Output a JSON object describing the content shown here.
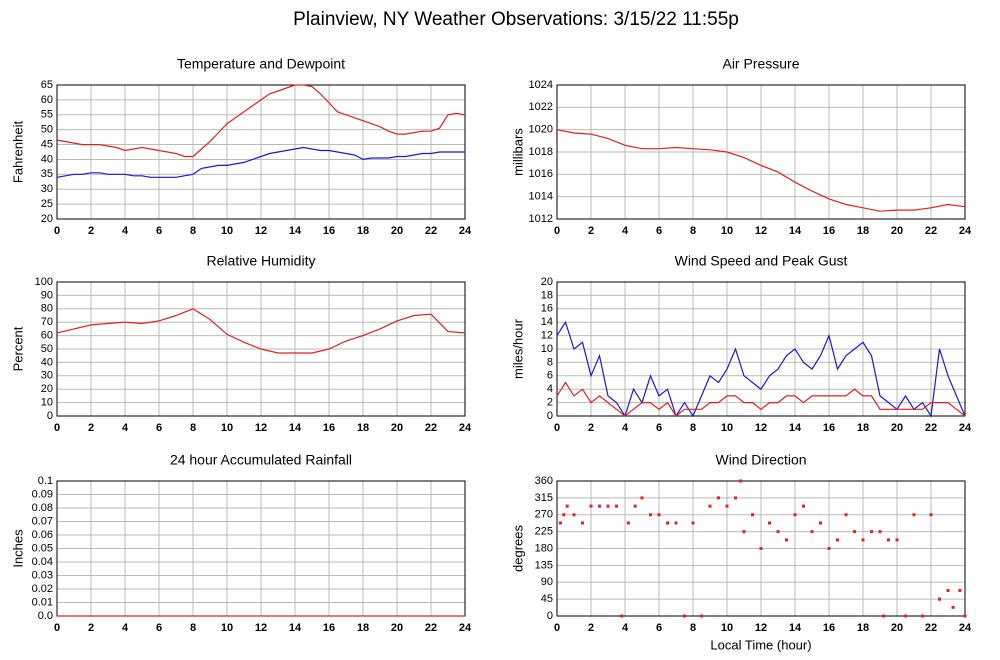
{
  "title": "Plainview, NY Weather Observations: 3/15/22 11:55p",
  "chart_data": [
    {
      "type": "line",
      "title": "Temperature and Dewpoint",
      "ylabel": "Fahrenheit",
      "x": [
        0,
        0.5,
        1,
        1.5,
        2,
        2.5,
        3,
        3.5,
        4,
        4.5,
        5,
        5.5,
        6,
        6.5,
        7,
        7.5,
        8,
        8.5,
        9,
        9.5,
        10,
        10.5,
        11,
        11.5,
        12,
        12.5,
        13,
        13.5,
        14,
        14.5,
        15,
        15.5,
        16,
        16.5,
        17,
        17.5,
        18,
        18.5,
        19,
        19.5,
        20,
        20.5,
        21,
        21.5,
        22,
        22.5,
        23,
        23.5,
        24
      ],
      "xlim": [
        0,
        24
      ],
      "xticks": [
        0,
        2,
        4,
        6,
        8,
        10,
        12,
        14,
        16,
        18,
        20,
        22,
        24
      ],
      "ylim": [
        20,
        65
      ],
      "yticks": [
        20,
        25,
        30,
        35,
        40,
        45,
        50,
        55,
        60,
        65
      ],
      "grid": true,
      "series": [
        {
          "color": "#e8211d",
          "values": [
            46.5,
            46,
            45.5,
            45,
            45,
            45,
            44.5,
            44,
            43,
            43.5,
            44,
            43.5,
            43,
            42.5,
            42,
            41,
            41,
            43.5,
            46,
            49,
            52,
            54,
            56,
            58,
            60,
            62,
            63,
            64,
            65,
            65,
            64.5,
            62,
            59,
            56,
            55,
            54,
            53,
            52,
            51,
            49.5,
            48.5,
            48.5,
            49,
            49.5,
            49.5,
            50.5,
            55,
            55.5,
            55
          ]
        },
        {
          "color": "#1a1ad8",
          "values": [
            34,
            34.5,
            35,
            35,
            35.5,
            35.5,
            35,
            35,
            35,
            34.5,
            34.5,
            34,
            34,
            34,
            34,
            34.5,
            35,
            37,
            37.5,
            38,
            38,
            38.5,
            39,
            40,
            41,
            42,
            42.5,
            43,
            43.5,
            44,
            43.5,
            43,
            43,
            42.5,
            42,
            41.5,
            40,
            40.5,
            40.5,
            40.5,
            41,
            41,
            41.5,
            42,
            42,
            42.5,
            42.5,
            42.5,
            42.5
          ]
        }
      ]
    },
    {
      "type": "line",
      "title": "Air Pressure",
      "ylabel": "millibars",
      "x": [
        0,
        1,
        2,
        3,
        4,
        5,
        6,
        7,
        8,
        9,
        10,
        11,
        12,
        13,
        14,
        15,
        16,
        17,
        18,
        19,
        20,
        21,
        22,
        23,
        24
      ],
      "xlim": [
        0,
        24
      ],
      "xticks": [
        0,
        2,
        4,
        6,
        8,
        10,
        12,
        14,
        16,
        18,
        20,
        22,
        24
      ],
      "ylim": [
        1012,
        1024
      ],
      "yticks": [
        1012,
        1014,
        1016,
        1018,
        1020,
        1022,
        1024
      ],
      "grid": true,
      "series": [
        {
          "color": "#e8211d",
          "values": [
            1020,
            1019.7,
            1019.6,
            1019.2,
            1018.6,
            1018.3,
            1018.3,
            1018.4,
            1018.3,
            1018.2,
            1018,
            1017.5,
            1016.8,
            1016.2,
            1015.3,
            1014.5,
            1013.8,
            1013.3,
            1013,
            1012.7,
            1012.8,
            1012.8,
            1013,
            1013.3,
            1013.1
          ]
        }
      ]
    },
    {
      "type": "line",
      "title": "Relative Humidity",
      "ylabel": "Percent",
      "x": [
        0,
        1,
        2,
        3,
        4,
        5,
        6,
        7,
        8,
        9,
        10,
        11,
        12,
        13,
        14,
        15,
        16,
        17,
        18,
        19,
        20,
        21,
        22,
        23,
        24
      ],
      "xlim": [
        0,
        24
      ],
      "xticks": [
        0,
        2,
        4,
        6,
        8,
        10,
        12,
        14,
        16,
        18,
        20,
        22,
        24
      ],
      "ylim": [
        0,
        100
      ],
      "yticks": [
        0,
        10,
        20,
        30,
        40,
        50,
        60,
        70,
        80,
        90,
        100
      ],
      "grid": true,
      "series": [
        {
          "color": "#e8211d",
          "values": [
            62,
            65,
            68,
            69,
            70,
            69,
            71,
            75,
            80,
            72,
            61,
            55,
            50,
            47,
            47,
            47,
            50,
            56,
            60,
            65,
            71,
            75,
            76,
            63,
            62
          ]
        }
      ]
    },
    {
      "type": "line",
      "title": "Wind Speed and Peak Gust",
      "ylabel": "miles/hour",
      "x": [
        0,
        0.5,
        1,
        1.5,
        2,
        2.5,
        3,
        3.5,
        4,
        4.5,
        5,
        5.5,
        6,
        6.5,
        7,
        7.5,
        8,
        8.5,
        9,
        9.5,
        10,
        10.5,
        11,
        11.5,
        12,
        12.5,
        13,
        13.5,
        14,
        14.5,
        15,
        15.5,
        16,
        16.5,
        17,
        17.5,
        18,
        18.5,
        19,
        19.5,
        20,
        20.5,
        21,
        21.5,
        22,
        22.5,
        23,
        23.5,
        24
      ],
      "xlim": [
        0,
        24
      ],
      "xticks": [
        0,
        2,
        4,
        6,
        8,
        10,
        12,
        14,
        16,
        18,
        20,
        22,
        24
      ],
      "ylim": [
        0,
        20
      ],
      "yticks": [
        0,
        2,
        4,
        6,
        8,
        10,
        12,
        14,
        16,
        18,
        20
      ],
      "grid": true,
      "series": [
        {
          "color": "#1a1ad8",
          "values": [
            12,
            14,
            10,
            11,
            6,
            9,
            3,
            2,
            0,
            4,
            2,
            6,
            3,
            4,
            0,
            2,
            0,
            3,
            6,
            5,
            7,
            10,
            6,
            5,
            4,
            6,
            7,
            9,
            10,
            8,
            7,
            9,
            12,
            7,
            9,
            10,
            11,
            9,
            3,
            2,
            1,
            3,
            1,
            2,
            0,
            10,
            6,
            3,
            0
          ]
        },
        {
          "color": "#e8211d",
          "values": [
            3,
            5,
            3,
            4,
            2,
            3,
            2,
            1,
            0,
            1,
            2,
            2,
            1,
            2,
            0,
            1,
            1,
            1,
            2,
            2,
            3,
            3,
            2,
            2,
            1,
            2,
            2,
            3,
            3,
            2,
            3,
            3,
            3,
            3,
            3,
            4,
            3,
            3,
            1,
            1,
            1,
            1,
            1,
            1,
            2,
            2,
            2,
            1,
            0
          ]
        }
      ]
    },
    {
      "type": "line",
      "title": "24 hour Accumulated Rainfall",
      "ylabel": "Inches",
      "x": [
        0,
        24
      ],
      "xlim": [
        0,
        24
      ],
      "xticks": [
        0,
        2,
        4,
        6,
        8,
        10,
        12,
        14,
        16,
        18,
        20,
        22,
        24
      ],
      "ylim": [
        0,
        0.1
      ],
      "yticks": [
        {
          "value": 0,
          "label": "0.0"
        },
        0.01,
        0.02,
        0.03,
        0.04,
        0.05,
        0.06,
        0.07,
        0.08,
        0.09,
        0.1
      ],
      "grid": true,
      "series": [
        {
          "color": "#e8211d",
          "values": [
            0,
            0
          ]
        }
      ]
    },
    {
      "type": "scatter",
      "title": "Wind Direction",
      "ylabel": "degrees",
      "xlabel": "Local Time (hour)",
      "x": [
        0.2,
        0.4,
        0.6,
        1,
        1.5,
        2,
        2.5,
        3,
        3.5,
        3.8,
        4.2,
        4.6,
        5,
        5.5,
        6,
        6.5,
        7,
        7.5,
        8,
        8.5,
        9,
        9.5,
        10,
        10.5,
        10.8,
        11,
        11.5,
        12,
        12.5,
        13,
        13.5,
        14,
        14.5,
        15,
        15.5,
        16,
        16.5,
        17,
        17.5,
        18,
        18.5,
        19,
        19.2,
        19.5,
        20,
        20.5,
        21,
        21.5,
        22,
        22.5,
        23,
        23.3,
        23.7,
        24
      ],
      "xlim": [
        0,
        24
      ],
      "xticks": [
        0,
        2,
        4,
        6,
        8,
        10,
        12,
        14,
        16,
        18,
        20,
        22,
        24
      ],
      "ylim": [
        0,
        360
      ],
      "yticks": [
        0,
        45,
        90,
        135,
        180,
        225,
        270,
        315,
        360
      ],
      "grid": true,
      "series": [
        {
          "color": "#e8211d",
          "values": [
            248,
            270,
            293,
            270,
            248,
            293,
            293,
            293,
            293,
            0,
            248,
            293,
            315,
            270,
            270,
            248,
            248,
            0,
            248,
            0,
            293,
            315,
            293,
            315,
            360,
            225,
            270,
            180,
            248,
            225,
            203,
            270,
            293,
            225,
            248,
            180,
            203,
            270,
            225,
            203,
            225,
            225,
            0,
            203,
            203,
            0,
            270,
            0,
            270,
            45,
            68,
            23,
            68,
            0
          ]
        }
      ]
    }
  ]
}
